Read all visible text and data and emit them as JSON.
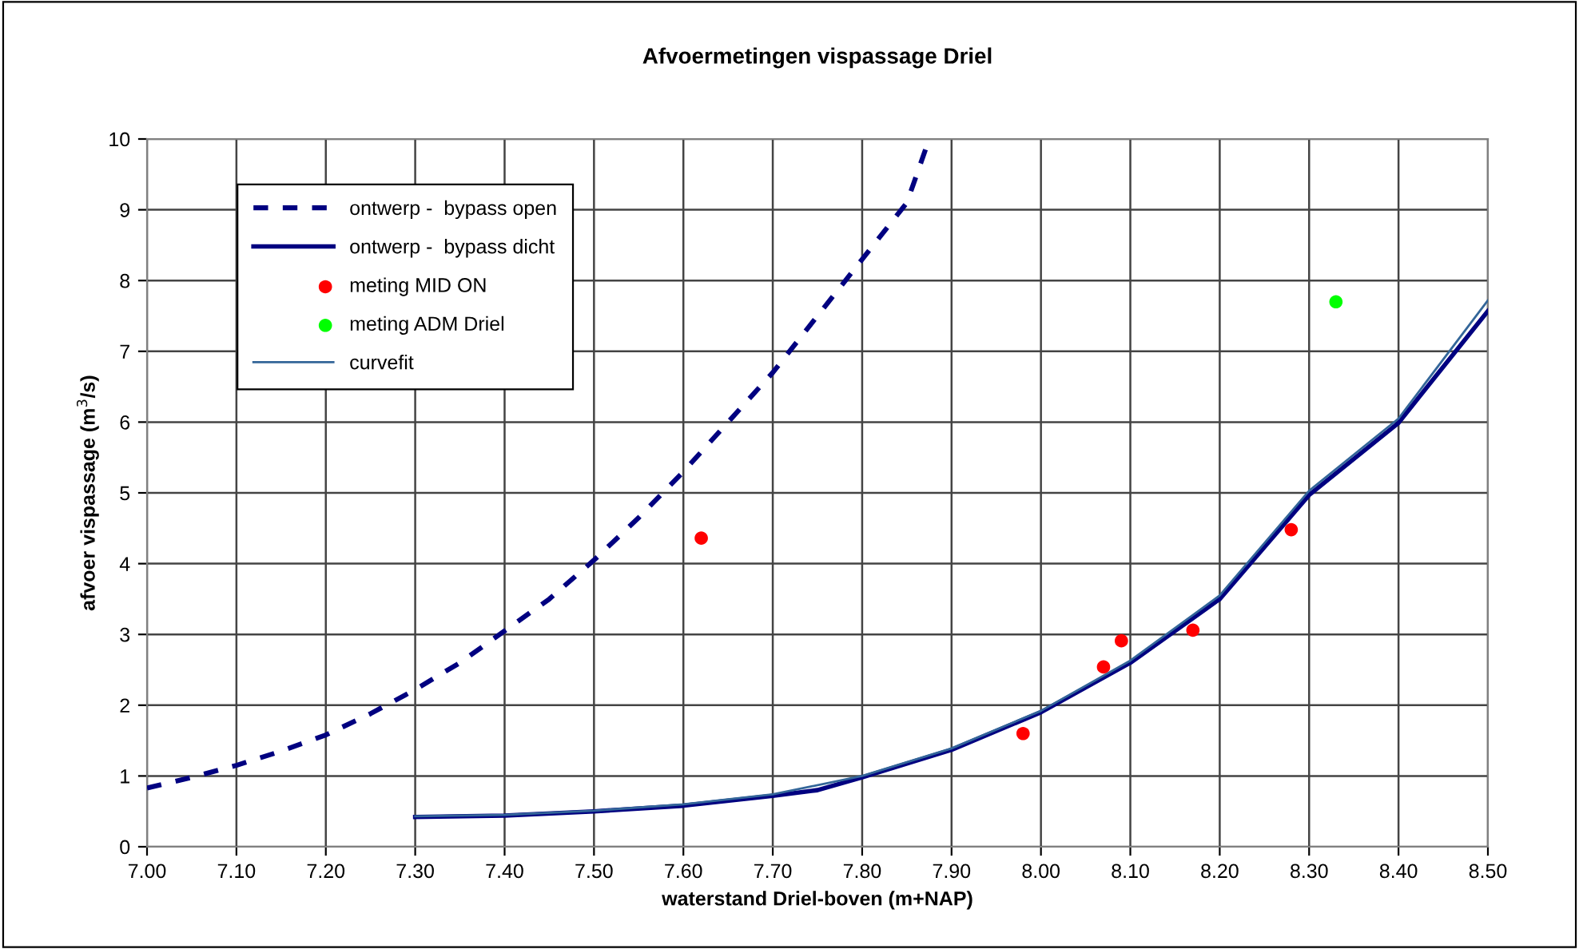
{
  "chart_data": {
    "type": "line",
    "title": "Afvoermetingen vispassage Driel",
    "xlabel": "waterstand Driel-boven (m+NAP)",
    "ylabel": "afvoer vispassage (m$^{3}$/s)",
    "xlim": [
      7.0,
      8.5
    ],
    "xticks": [
      {
        "value": 7.0,
        "label": "7.00"
      },
      {
        "value": 7.1,
        "label": "7.10"
      },
      {
        "value": 7.2,
        "label": "7.20"
      },
      {
        "value": 7.3,
        "label": "7.30"
      },
      {
        "value": 7.4,
        "label": "7.40"
      },
      {
        "value": 7.5,
        "label": "7.50"
      },
      {
        "value": 7.6,
        "label": "7.60"
      },
      {
        "value": 7.7,
        "label": "7.70"
      },
      {
        "value": 7.8,
        "label": "7.80"
      },
      {
        "value": 7.9,
        "label": "7.90"
      },
      {
        "value": 8.0,
        "label": "8.00"
      },
      {
        "value": 8.1,
        "label": "8.10"
      },
      {
        "value": 8.2,
        "label": "8.20"
      },
      {
        "value": 8.3,
        "label": "8.30"
      },
      {
        "value": 8.4,
        "label": "8.40"
      },
      {
        "value": 8.5,
        "label": "8.50"
      }
    ],
    "ylim": [
      0,
      10
    ],
    "yticks": [
      0,
      1,
      2,
      3,
      4,
      5,
      6,
      7,
      8,
      9,
      10
    ],
    "grid": true,
    "legend": "top left",
    "series": [
      {
        "name": "ontwerp -  bypass open",
        "line_style": "dashed",
        "color": "#000080",
        "x": [
          7.0,
          7.05,
          7.1,
          7.15,
          7.2,
          7.25,
          7.3,
          7.35,
          7.4,
          7.45,
          7.5,
          7.55,
          7.6,
          7.65,
          7.7,
          7.75,
          7.8,
          7.85,
          7.875
        ],
        "values": [
          0.83,
          0.98,
          1.15,
          1.35,
          1.58,
          1.88,
          2.22,
          2.6,
          3.05,
          3.5,
          4.05,
          4.65,
          5.3,
          6.0,
          6.7,
          7.5,
          8.3,
          9.1,
          10.0
        ]
      },
      {
        "name": "ontwerp -  bypass dicht",
        "line_style": "solid",
        "color": "#000080",
        "x": [
          7.3,
          7.4,
          7.5,
          7.6,
          7.7,
          7.75,
          7.8,
          7.9,
          8.0,
          8.1,
          8.2,
          8.3,
          8.4,
          8.5
        ],
        "values": [
          0.42,
          0.44,
          0.5,
          0.58,
          0.72,
          0.8,
          0.98,
          1.37,
          1.9,
          2.6,
          3.5,
          4.97,
          5.99,
          7.57
        ]
      },
      {
        "name": "meting MID ON",
        "type": "scatter",
        "marker": "circle",
        "color": "#ff0000",
        "x": [
          7.62,
          7.98,
          8.07,
          8.09,
          8.17,
          8.28
        ],
        "values": [
          4.36,
          1.6,
          2.54,
          2.91,
          3.06,
          4.48
        ]
      },
      {
        "name": "meting ADM Driel",
        "type": "scatter",
        "marker": "circle",
        "color": "#00ff00",
        "x": [
          8.33
        ],
        "values": [
          7.7
        ]
      },
      {
        "name": "curvefit",
        "line_style": "solid",
        "color": "#336699",
        "x": [
          7.3,
          7.4,
          7.5,
          7.6,
          7.7,
          7.8,
          7.9,
          8.0,
          8.1,
          8.2,
          8.3,
          8.4,
          8.5
        ],
        "values": [
          0.43,
          0.45,
          0.51,
          0.6,
          0.74,
          1.0,
          1.39,
          1.92,
          2.63,
          3.55,
          5.03,
          6.05,
          7.72
        ]
      }
    ]
  }
}
